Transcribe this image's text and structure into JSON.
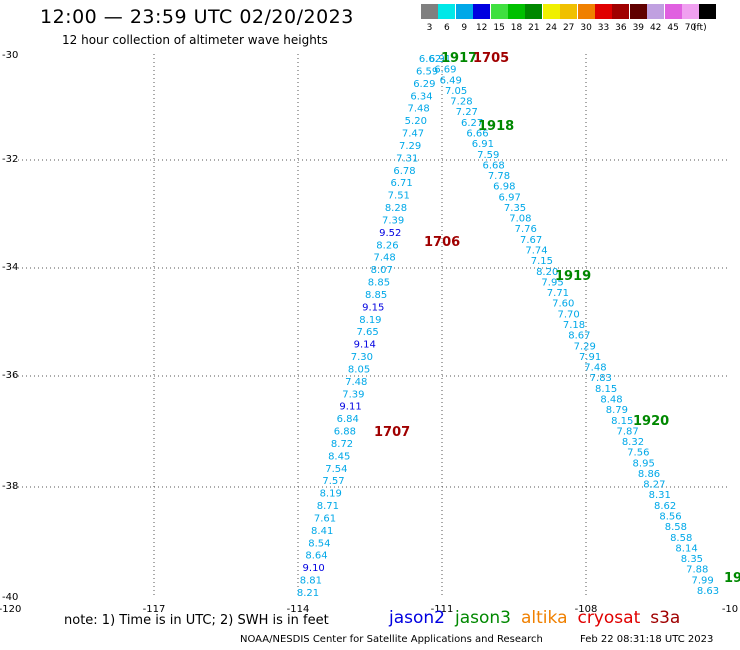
{
  "title": "12:00 — 23:59 UTC 02/20/2023",
  "subtitle": "12 hour collection of altimeter wave heights",
  "colorbar": {
    "unit": "(ft)",
    "bins": [
      {
        "label": "3",
        "color": "#808080"
      },
      {
        "label": "6",
        "color": "#00e8e8"
      },
      {
        "label": "9",
        "color": "#00a8e8"
      },
      {
        "label": "12",
        "color": "#0000e0"
      },
      {
        "label": "15",
        "color": "#40e040"
      },
      {
        "label": "18",
        "color": "#00c000"
      },
      {
        "label": "21",
        "color": "#008800"
      },
      {
        "label": "24",
        "color": "#f0f000"
      },
      {
        "label": "27",
        "color": "#f0c000"
      },
      {
        "label": "30",
        "color": "#f08000"
      },
      {
        "label": "33",
        "color": "#e00000"
      },
      {
        "label": "36",
        "color": "#a00000"
      },
      {
        "label": "39",
        "color": "#600000"
      },
      {
        "label": "42",
        "color": "#c0a0e0"
      },
      {
        "label": "45",
        "color": "#e060e0"
      },
      {
        "label": "70",
        "color": "#f0a0f0"
      },
      {
        "label": "",
        "color": "#000000"
      }
    ]
  },
  "axes": {
    "lon_ticks": [
      "-120",
      "-117",
      "-114",
      "-111",
      "-108",
      "-10"
    ],
    "lat_ticks": [
      "-30",
      "-32",
      "-34",
      "-36",
      "-38",
      "-40"
    ]
  },
  "tracks": [
    {
      "id": "track-1705",
      "time_label": "1705",
      "label_color": "#a00000",
      "points": [
        "6.62",
        "6.59",
        "6.29",
        "6.34",
        "7.48",
        "5.20",
        "7.47",
        "7.29",
        "7.31",
        "6.78",
        "6.71",
        "7.51",
        "8.28",
        "7.39",
        "9.52",
        "8.26",
        "7.48",
        "8.07",
        "8.85",
        "8.85",
        "9.15",
        "8.19",
        "7.65",
        "9.14",
        "7.30",
        "8.05",
        "7.48",
        "7.39",
        "9.11",
        "6.84",
        "6.88",
        "8.72",
        "8.45",
        "7.54",
        "7.57",
        "8.19",
        "8.71",
        "7.61",
        "8.41",
        "8.54",
        "8.64",
        "9.10",
        "8.81",
        "8.21"
      ]
    },
    {
      "id": "track-1917",
      "time_label": "1917",
      "label_color": "#008800",
      "points": [
        "6.91",
        "6.69",
        "6.49",
        "7.05",
        "7.28",
        "7.27",
        "6.27",
        "6.66",
        "6.91",
        "7.59",
        "6.68",
        "7.78",
        "6.98",
        "6.97",
        "7.35",
        "7.08",
        "7.76",
        "7.67",
        "7.74",
        "7.15",
        "8.20",
        "7.95",
        "7.71",
        "7.60",
        "7.70",
        "7.18",
        "8.67",
        "7.29",
        "7.91",
        "7.48",
        "7.83",
        "8.15",
        "8.48",
        "8.79",
        "8.15",
        "7.87",
        "8.32",
        "7.56",
        "8.95",
        "8.86",
        "8.27",
        "8.31",
        "8.62",
        "8.56",
        "8.58",
        "8.58",
        "8.14",
        "8.35",
        "7.88",
        "7.99",
        "8.63"
      ]
    }
  ],
  "time_labels": [
    {
      "text": "1917",
      "color": "#008800"
    },
    {
      "text": "1705",
      "color": "#a00000"
    },
    {
      "text": "1918",
      "color": "#008800"
    },
    {
      "text": "1706",
      "color": "#a00000"
    },
    {
      "text": "1919",
      "color": "#008800"
    },
    {
      "text": "1707",
      "color": "#a00000"
    },
    {
      "text": "1920",
      "color": "#008800"
    },
    {
      "text": "19",
      "color": "#008800"
    }
  ],
  "note": "note: 1) Time is in UTC; 2) SWH is in feet",
  "missions": [
    {
      "name": "jason2",
      "color": "#0000e0"
    },
    {
      "name": "jason3",
      "color": "#008800"
    },
    {
      "name": "altika",
      "color": "#f08000"
    },
    {
      "name": "cryosat",
      "color": "#e00000"
    },
    {
      "name": "s3a",
      "color": "#a00000"
    }
  ],
  "credit": "NOAA/NESDIS Center for Satellite Applications and Research",
  "timestamp": "Feb 22 08:31:18 UTC 2023"
}
